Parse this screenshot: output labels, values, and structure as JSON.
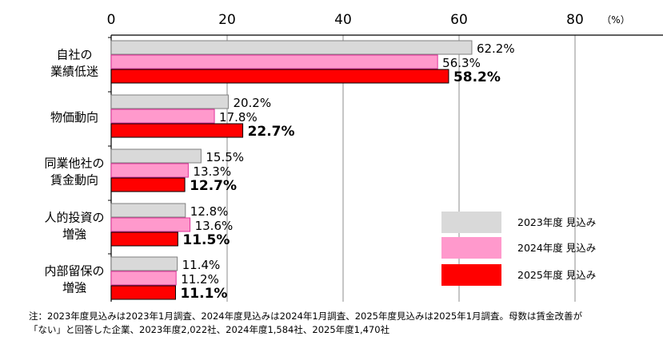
{
  "chart_data": {
    "type": "bar",
    "orientation": "horizontal",
    "categories": [
      [
        "自社の",
        "業績低迷"
      ],
      [
        "物価動向"
      ],
      [
        "同業他社の",
        "賃金動向"
      ],
      [
        "人的投資の",
        "増強"
      ],
      [
        "内部留保の",
        "増強"
      ]
    ],
    "series": [
      {
        "name": "2023年度  見込み",
        "color": "#d9d9d9",
        "values": [
          62.2,
          20.2,
          15.5,
          12.8,
          11.4
        ],
        "labels": [
          "62.2%",
          "20.2%",
          "15.5%",
          "12.8%",
          "11.4%"
        ]
      },
      {
        "name": "2024年度  見込み",
        "color": "#ff99cc",
        "values": [
          56.3,
          17.8,
          13.3,
          13.6,
          11.2
        ],
        "labels": [
          "56.3%",
          "17.8%",
          "13.3%",
          "13.6%",
          "11.2%"
        ]
      },
      {
        "name": "2025年度  見込み",
        "color": "#ff0000",
        "values": [
          58.2,
          22.7,
          12.7,
          11.5,
          11.1
        ],
        "labels": [
          "58.2%",
          "22.7%",
          "12.7%",
          "11.5%",
          "11.1%"
        ]
      }
    ],
    "xlim": [
      0,
      95
    ],
    "xticks": [
      0,
      20,
      40,
      60,
      80
    ],
    "xtick_labels": [
      "0",
      "20",
      "40",
      "60",
      "80"
    ],
    "unit_label": "（%）",
    "grid": true,
    "legend_position": "bottom-right"
  },
  "notes": {
    "line1": "注：2023年度見込みは2023年1月調査、2024年度見込みは2024年1月調査、2025年度見込みは2025年1月調査。母数は賃金改善が",
    "line2": "「ない」と回答した企業、2023年度2,022社、2024年度1,584社、2025年度1,470社"
  }
}
